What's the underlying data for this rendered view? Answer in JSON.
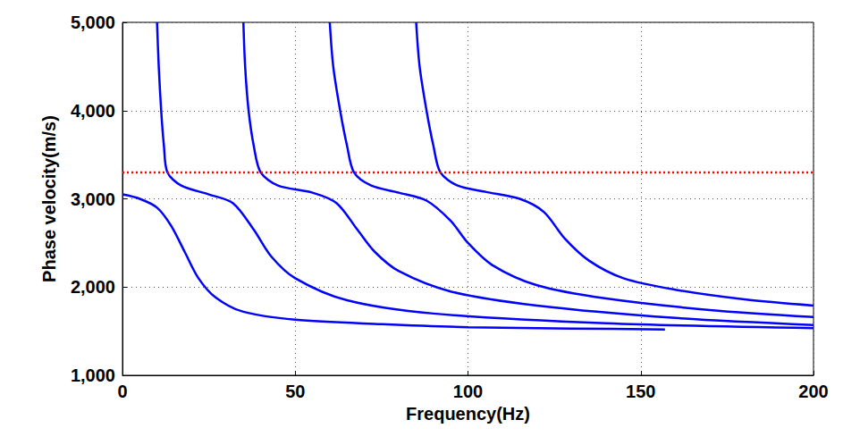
{
  "chart_data": {
    "type": "line",
    "x_label": "Frequency(Hz)",
    "y_label": "Phase velocity(m/s)",
    "xlim": [
      0,
      200
    ],
    "xticks": [
      0,
      50,
      100,
      150,
      200
    ],
    "ylim": [
      1000,
      5000
    ],
    "yticks": [
      1000,
      2000,
      3000,
      4000,
      5000
    ],
    "grid": true,
    "series": [
      {
        "color": "#0000ff",
        "line_style": "solid",
        "marker": "none",
        "x": [
          0,
          5,
          10,
          14,
          18,
          22,
          27,
          35,
          50,
          75,
          100,
          130,
          157
        ],
        "values": [
          3050,
          3000,
          2900,
          2700,
          2400,
          2100,
          1880,
          1720,
          1630,
          1580,
          1545,
          1530,
          1520
        ]
      },
      {
        "color": "#0000ff",
        "line_style": "solid",
        "marker": "none",
        "x": [
          10,
          10.5,
          11.2,
          12,
          13,
          17,
          25,
          32,
          38,
          43,
          50,
          65,
          90,
          140,
          200
        ],
        "values": [
          5000,
          4500,
          4000,
          3600,
          3300,
          3150,
          3050,
          2950,
          2650,
          2350,
          2100,
          1850,
          1700,
          1590,
          1535
        ]
      },
      {
        "color": "#0000ff",
        "line_style": "solid",
        "marker": "none",
        "x": [
          35,
          35.5,
          36.5,
          38,
          40,
          45,
          55,
          62,
          68,
          73,
          80,
          95,
          120,
          160,
          200
        ],
        "values": [
          5000,
          4500,
          4000,
          3600,
          3300,
          3150,
          3070,
          2950,
          2650,
          2400,
          2180,
          1950,
          1790,
          1650,
          1570
        ]
      },
      {
        "color": "#0000ff",
        "line_style": "solid",
        "marker": "none",
        "x": [
          60,
          61,
          63,
          65,
          67,
          72,
          80,
          88,
          95,
          100,
          107,
          120,
          140,
          170,
          200
        ],
        "values": [
          5000,
          4500,
          4000,
          3600,
          3300,
          3150,
          3070,
          2980,
          2750,
          2500,
          2250,
          2020,
          1870,
          1740,
          1660
        ]
      },
      {
        "color": "#0000ff",
        "line_style": "solid",
        "marker": "none",
        "x": [
          85,
          86,
          88,
          90,
          92,
          97,
          105,
          115,
          122,
          128,
          135,
          145,
          160,
          180,
          200
        ],
        "values": [
          5000,
          4500,
          4000,
          3600,
          3300,
          3150,
          3080,
          3000,
          2850,
          2550,
          2300,
          2100,
          1970,
          1860,
          1790
        ]
      },
      {
        "color": "#ff0000",
        "line_style": "dotted",
        "marker": "none",
        "x": [
          0,
          200
        ],
        "values": [
          3300,
          3300
        ]
      }
    ]
  }
}
